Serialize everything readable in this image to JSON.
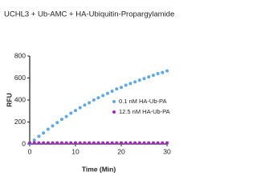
{
  "chart_data": {
    "type": "scatter",
    "title": "UCHL3 + Ub-AMC + HA-Ubiquitin-Propargylamide",
    "x_label": "Time (Min)",
    "y_label": "RFU",
    "x": [
      0,
      1,
      2,
      3,
      4,
      5,
      6,
      7,
      8,
      9,
      10,
      11,
      12,
      13,
      14,
      15,
      16,
      17,
      18,
      19,
      20,
      21,
      22,
      23,
      24,
      25,
      26,
      27,
      28,
      29,
      30
    ],
    "series": [
      {
        "name": "0.1 nM HA-Ub-PA",
        "color": "#5aa8f0",
        "values": [
          0,
          35,
          70,
          100,
          135,
          165,
          195,
          225,
          250,
          280,
          305,
          330,
          355,
          375,
          400,
          420,
          440,
          460,
          480,
          500,
          515,
          535,
          550,
          565,
          580,
          595,
          610,
          625,
          640,
          650,
          665
        ]
      },
      {
        "name": "12.5 nM HA-Ub-PA",
        "color": "#a424c4",
        "values": [
          10,
          10,
          10,
          10,
          10,
          10,
          10,
          10,
          10,
          10,
          10,
          10,
          10,
          10,
          10,
          10,
          10,
          10,
          10,
          10,
          10,
          10,
          10,
          10,
          10,
          10,
          10,
          10,
          10,
          10,
          10
        ]
      }
    ],
    "xlim": [
      0,
      30
    ],
    "xticks": [
      0,
      10,
      20,
      30
    ],
    "ylim": [
      0,
      800
    ],
    "yticks": [
      0,
      200,
      400,
      600,
      800
    ],
    "legend": "right"
  }
}
